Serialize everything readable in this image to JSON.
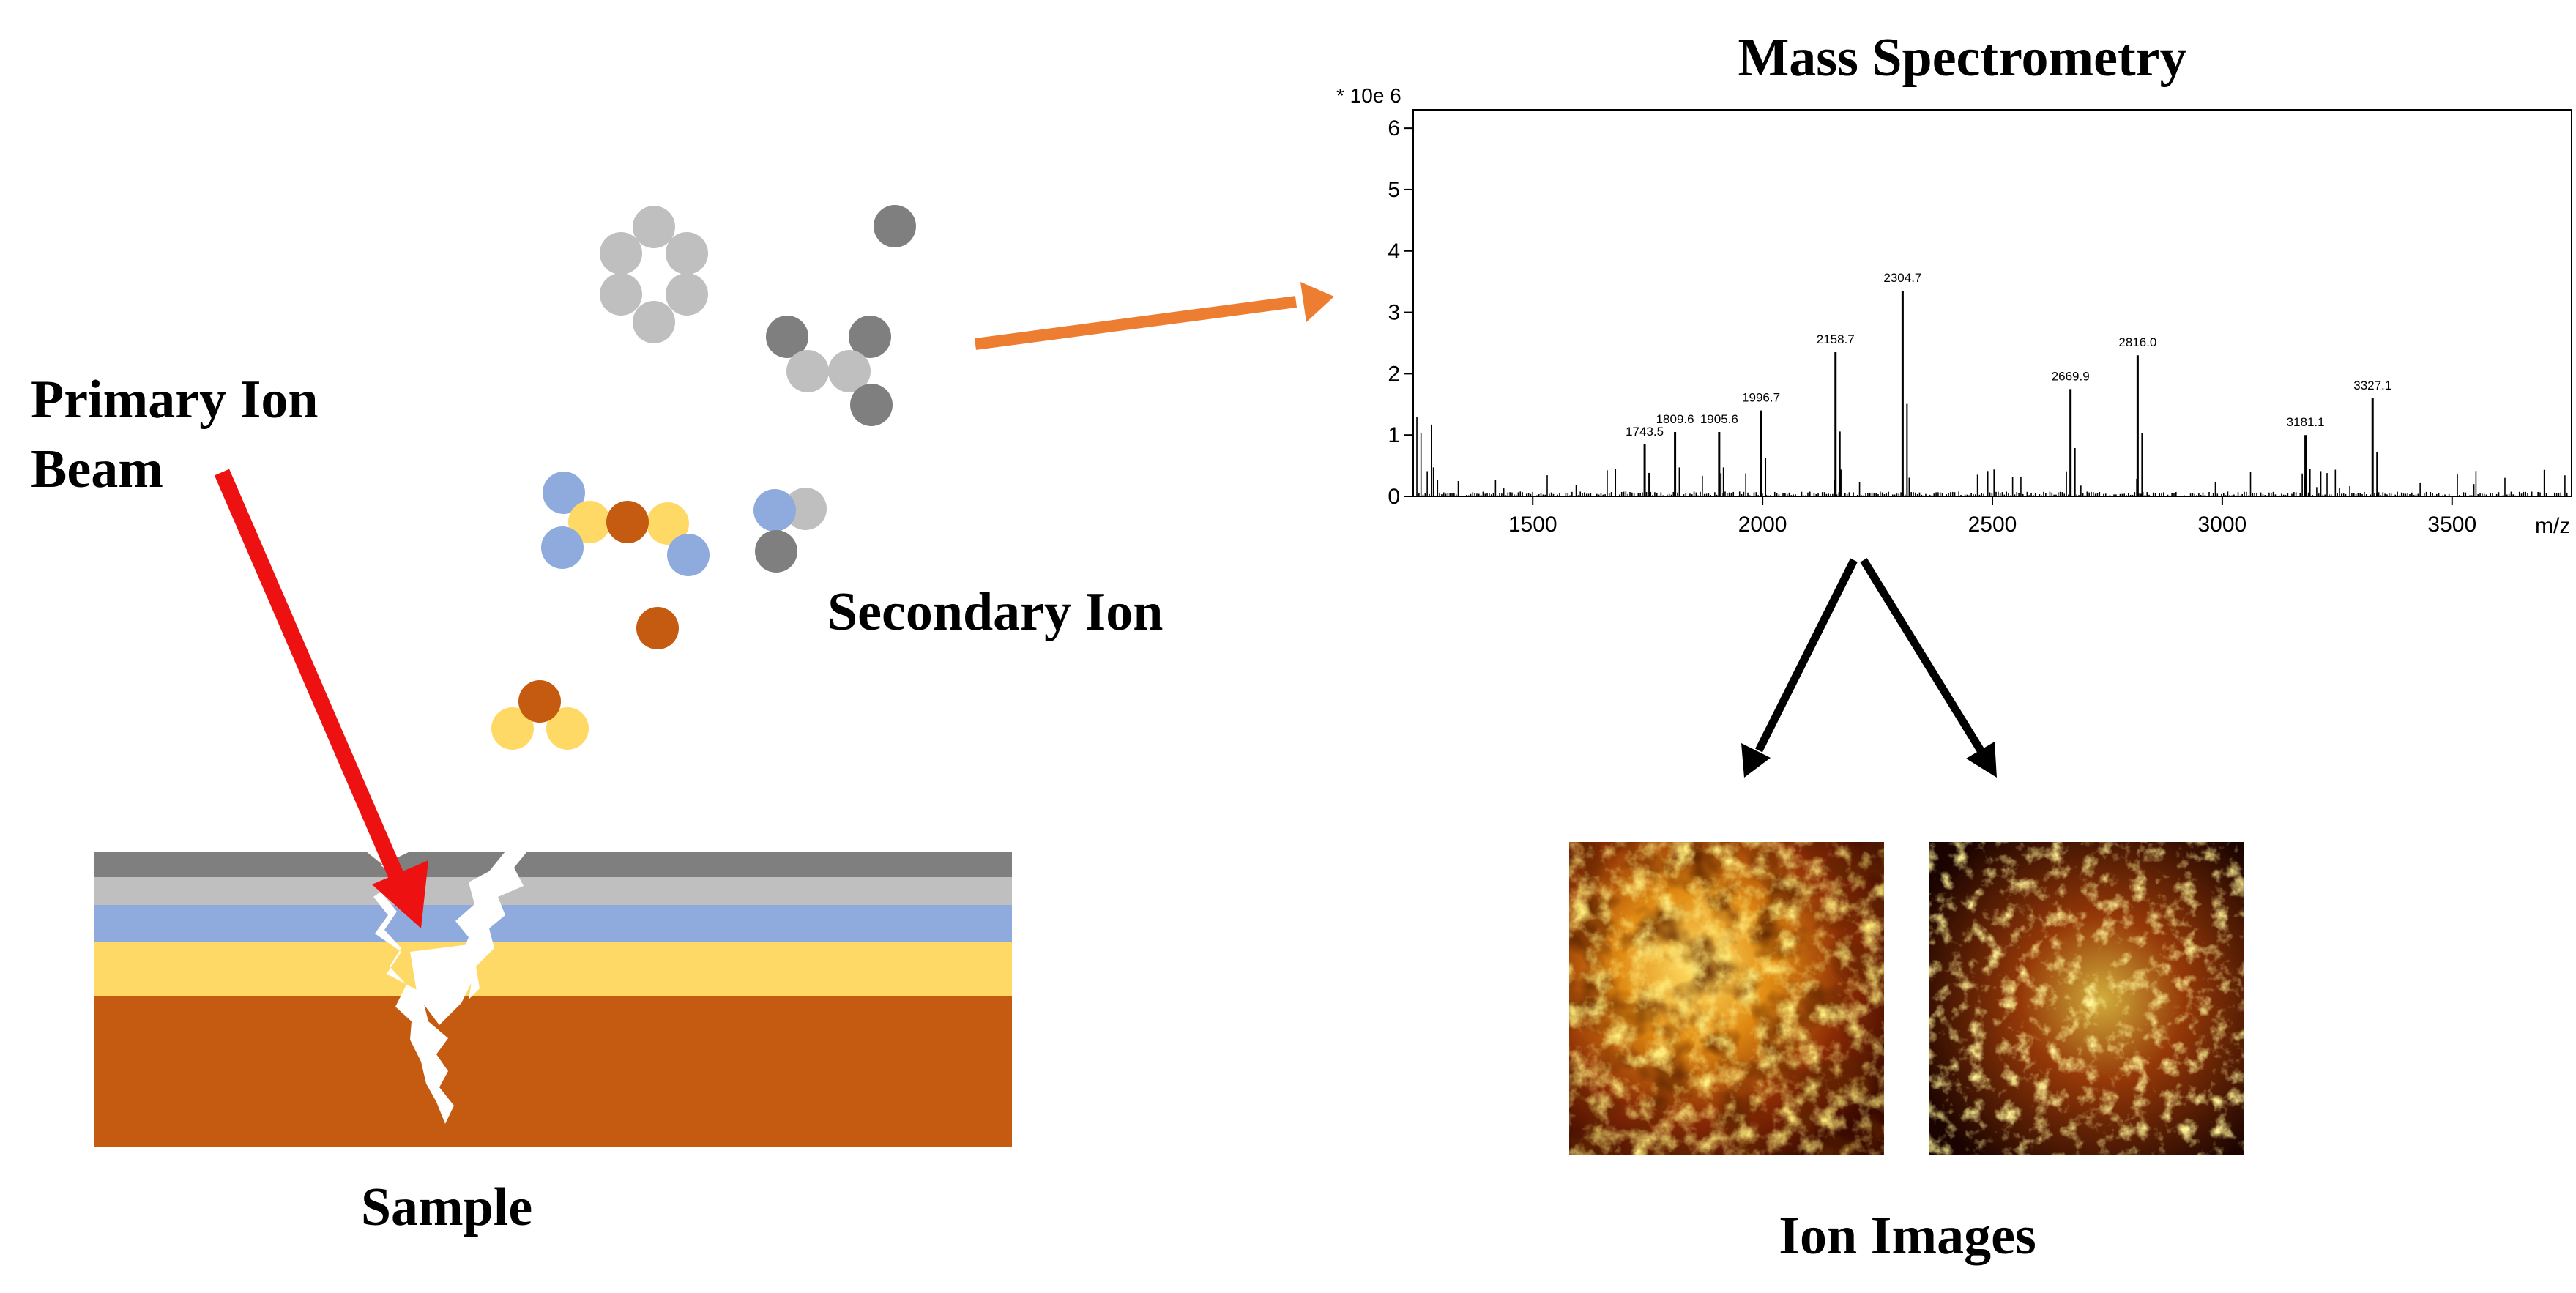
{
  "labels": {
    "primary_ion_beam_line1": "Primary Ion",
    "primary_ion_beam_line2": "Beam",
    "secondary_ion": "Secondary Ion",
    "sample": "Sample",
    "mass_spectrometry": "Mass Spectrometry",
    "ion_images": "Ion Images"
  },
  "colors": {
    "primary_beam_arrow": "#ee1111",
    "transfer_arrow": "#ed7d31",
    "layer_dark_gray": "#7f7f7f",
    "layer_light_gray": "#bfbfbf",
    "layer_blue": "#8faadc",
    "layer_yellow": "#ffd966",
    "layer_brown": "#c55a11"
  },
  "chart_data": {
    "type": "line",
    "title": "",
    "xlabel": "m/z",
    "ylabel": "",
    "y_multiplier_label": "* 10e 6",
    "xlim": [
      1240,
      3760
    ],
    "ylim": [
      0,
      6.3
    ],
    "x_ticks": [
      1500,
      2000,
      2500,
      3000,
      3500
    ],
    "y_ticks": [
      0,
      1,
      2,
      3,
      4,
      5,
      6
    ],
    "labeled_peaks": [
      {
        "x": 1743.5,
        "y": 0.85,
        "label": "1743.5"
      },
      {
        "x": 1809.6,
        "y": 1.05,
        "label": "1809.6"
      },
      {
        "x": 1905.6,
        "y": 1.05,
        "label": "1905.6"
      },
      {
        "x": 1996.7,
        "y": 1.4,
        "label": "1996.7"
      },
      {
        "x": 2158.7,
        "y": 2.35,
        "label": "2158.7"
      },
      {
        "x": 2304.7,
        "y": 3.35,
        "label": "2304.7"
      },
      {
        "x": 2669.9,
        "y": 1.75,
        "label": "2669.9"
      },
      {
        "x": 2816.0,
        "y": 2.3,
        "label": "2816.0"
      },
      {
        "x": 3181.1,
        "y": 1.0,
        "label": "3181.1"
      },
      {
        "x": 3327.1,
        "y": 1.6,
        "label": "3327.1"
      }
    ]
  }
}
